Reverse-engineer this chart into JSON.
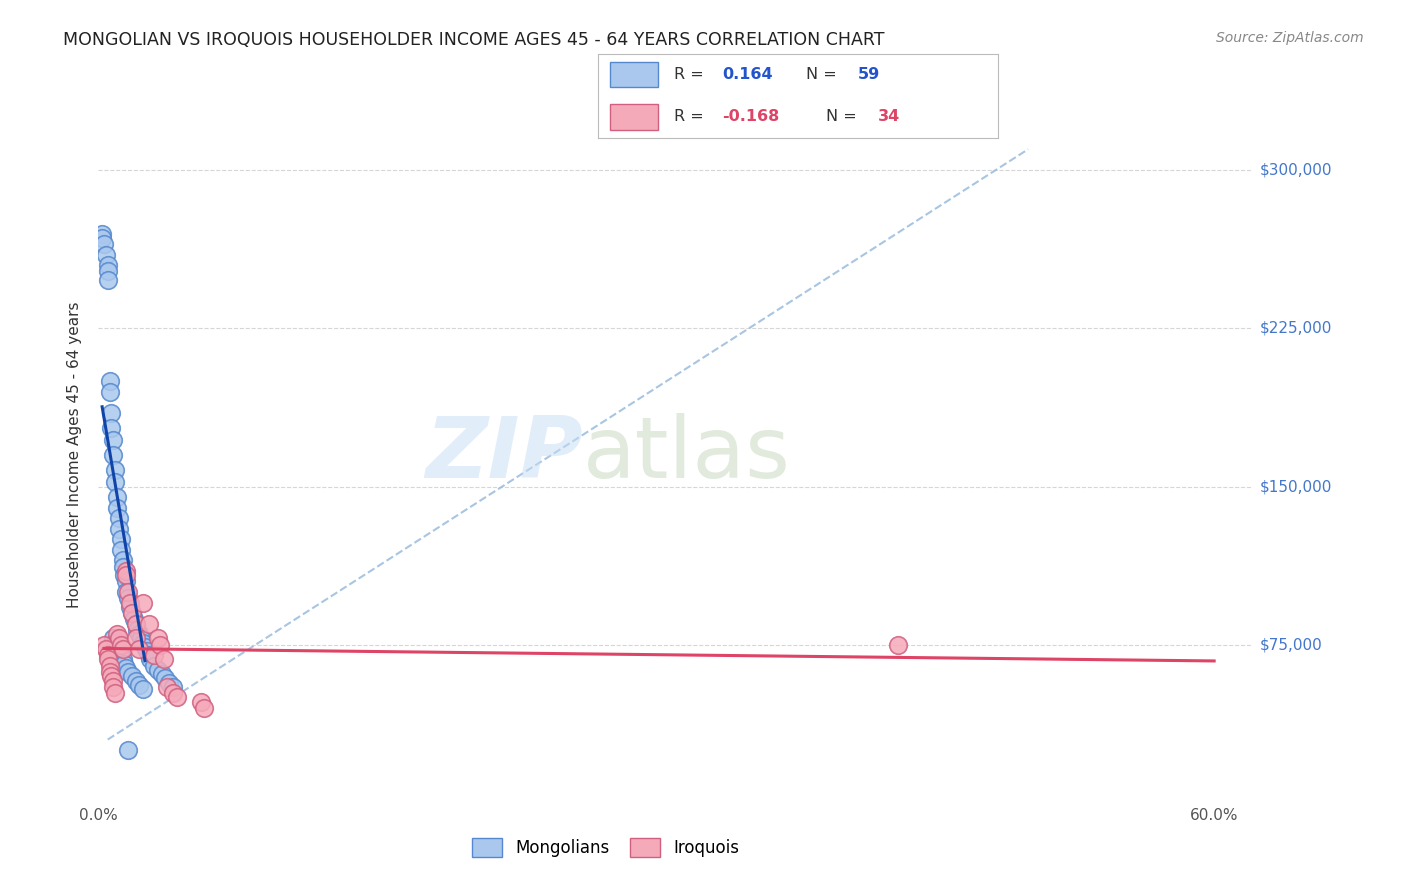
{
  "title": "MONGOLIAN VS IROQUOIS HOUSEHOLDER INCOME AGES 45 - 64 YEARS CORRELATION CHART",
  "source": "Source: ZipAtlas.com",
  "ylabel": "Householder Income Ages 45 - 64 years",
  "xlim": [
    0.0,
    0.62
  ],
  "ylim": [
    0,
    330000
  ],
  "yticks": [
    75000,
    150000,
    225000,
    300000
  ],
  "ytick_labels": [
    "$75,000",
    "$150,000",
    "$225,000",
    "$300,000"
  ],
  "xtick_vals": [
    0.0,
    0.1,
    0.2,
    0.3,
    0.4,
    0.5,
    0.6
  ],
  "mongolian_color": "#aac8ee",
  "mongolian_edge": "#5588cc",
  "iroquois_color": "#f5aaba",
  "iroquois_edge": "#d06080",
  "trend_mongolian_color": "#1144aa",
  "trend_iroquois_color": "#dd4466",
  "dashed_line_color": "#99bbdd",
  "background_color": "#ffffff",
  "grid_color": "#cccccc",
  "mongolian_x": [
    0.002,
    0.002,
    0.003,
    0.004,
    0.005,
    0.005,
    0.005,
    0.006,
    0.006,
    0.007,
    0.007,
    0.008,
    0.008,
    0.009,
    0.009,
    0.01,
    0.01,
    0.011,
    0.011,
    0.012,
    0.012,
    0.013,
    0.013,
    0.014,
    0.015,
    0.015,
    0.016,
    0.017,
    0.018,
    0.019,
    0.02,
    0.021,
    0.022,
    0.023,
    0.024,
    0.025,
    0.026,
    0.027,
    0.028,
    0.03,
    0.032,
    0.034,
    0.036,
    0.038,
    0.04,
    0.008,
    0.009,
    0.01,
    0.011,
    0.012,
    0.013,
    0.014,
    0.015,
    0.016,
    0.018,
    0.02,
    0.022,
    0.024,
    0.016
  ],
  "mongolian_y": [
    270000,
    268000,
    265000,
    260000,
    255000,
    252000,
    248000,
    200000,
    195000,
    185000,
    178000,
    172000,
    165000,
    158000,
    152000,
    145000,
    140000,
    135000,
    130000,
    125000,
    120000,
    115000,
    112000,
    108000,
    105000,
    100000,
    97000,
    93000,
    90000,
    87000,
    85000,
    82000,
    80000,
    78000,
    76000,
    74000,
    72000,
    70000,
    68000,
    65000,
    63000,
    61000,
    59000,
    57000,
    55000,
    78000,
    76000,
    74000,
    72000,
    70000,
    68000,
    66000,
    64000,
    62000,
    60000,
    58000,
    56000,
    54000,
    25000
  ],
  "iroquois_x": [
    0.003,
    0.004,
    0.005,
    0.005,
    0.006,
    0.006,
    0.007,
    0.008,
    0.008,
    0.009,
    0.01,
    0.011,
    0.012,
    0.013,
    0.015,
    0.015,
    0.016,
    0.017,
    0.018,
    0.02,
    0.02,
    0.022,
    0.024,
    0.027,
    0.03,
    0.032,
    0.033,
    0.035,
    0.037,
    0.04,
    0.042,
    0.055,
    0.057,
    0.43
  ],
  "iroquois_y": [
    75000,
    73000,
    70000,
    68000,
    65000,
    62000,
    60000,
    58000,
    55000,
    52000,
    80000,
    78000,
    75000,
    73000,
    110000,
    108000,
    100000,
    95000,
    90000,
    85000,
    78000,
    73000,
    95000,
    85000,
    70000,
    78000,
    75000,
    68000,
    55000,
    52000,
    50000,
    48000,
    45000,
    75000
  ]
}
